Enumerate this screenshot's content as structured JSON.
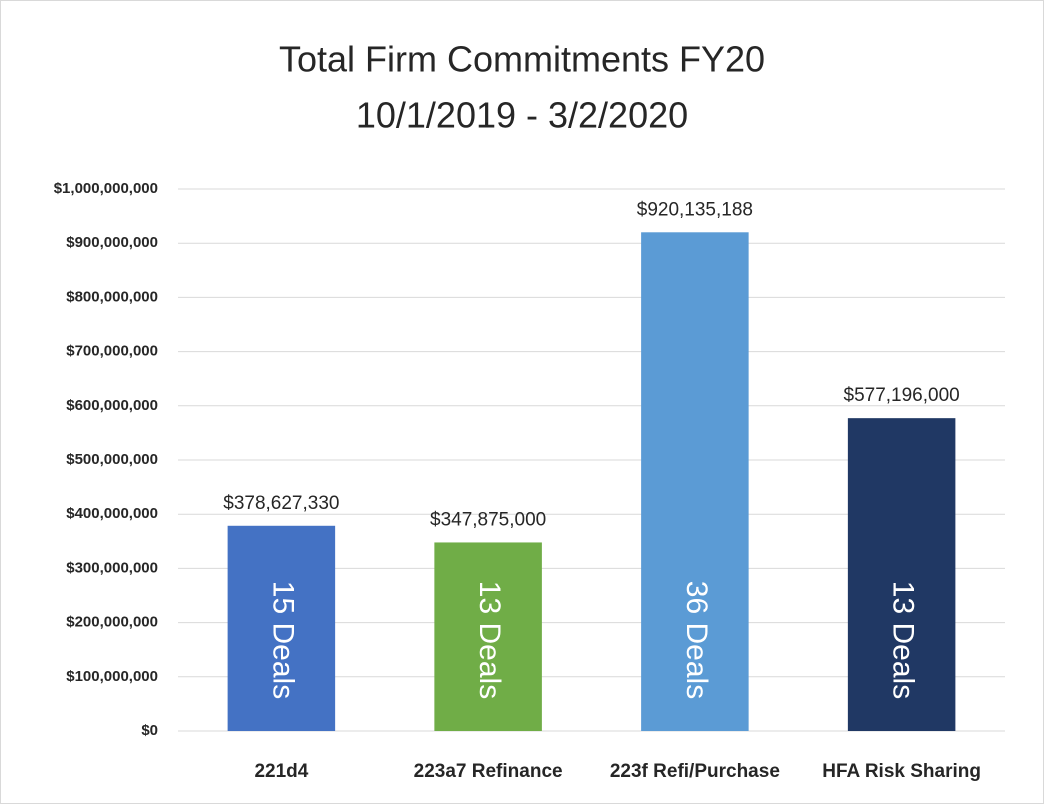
{
  "chart_data": {
    "type": "bar",
    "title": "Total Firm Commitments FY20",
    "subtitle": "10/1/2019 - 3/2/2020",
    "categories": [
      "221d4",
      "223a7 Refinance",
      "223f Refi/Purchase",
      "HFA Risk Sharing"
    ],
    "values": [
      378627330,
      347875000,
      920135188,
      577196000
    ],
    "value_labels": [
      "$378,627,330",
      "$347,875,000",
      "$920,135,188",
      "$577,196,000"
    ],
    "bar_labels": [
      "15 Deals",
      "13 Deals",
      "36 Deals",
      "13 Deals"
    ],
    "colors": [
      "#4472c4",
      "#70ad47",
      "#5b9bd5",
      "#203864"
    ],
    "ylim": [
      0,
      1000000000
    ],
    "yticks": [
      {
        "value": 0,
        "label": "$0"
      },
      {
        "value": 100000000,
        "label": "$100,000,000"
      },
      {
        "value": 200000000,
        "label": "$200,000,000"
      },
      {
        "value": 300000000,
        "label": "$300,000,000"
      },
      {
        "value": 400000000,
        "label": "$400,000,000"
      },
      {
        "value": 500000000,
        "label": "$500,000,000"
      },
      {
        "value": 600000000,
        "label": "$600,000,000"
      },
      {
        "value": 700000000,
        "label": "$700,000,000"
      },
      {
        "value": 800000000,
        "label": "$800,000,000"
      },
      {
        "value": 900000000,
        "label": "$900,000,000"
      },
      {
        "value": 1000000000,
        "label": "$1,000,000,000"
      }
    ],
    "grid": true
  }
}
